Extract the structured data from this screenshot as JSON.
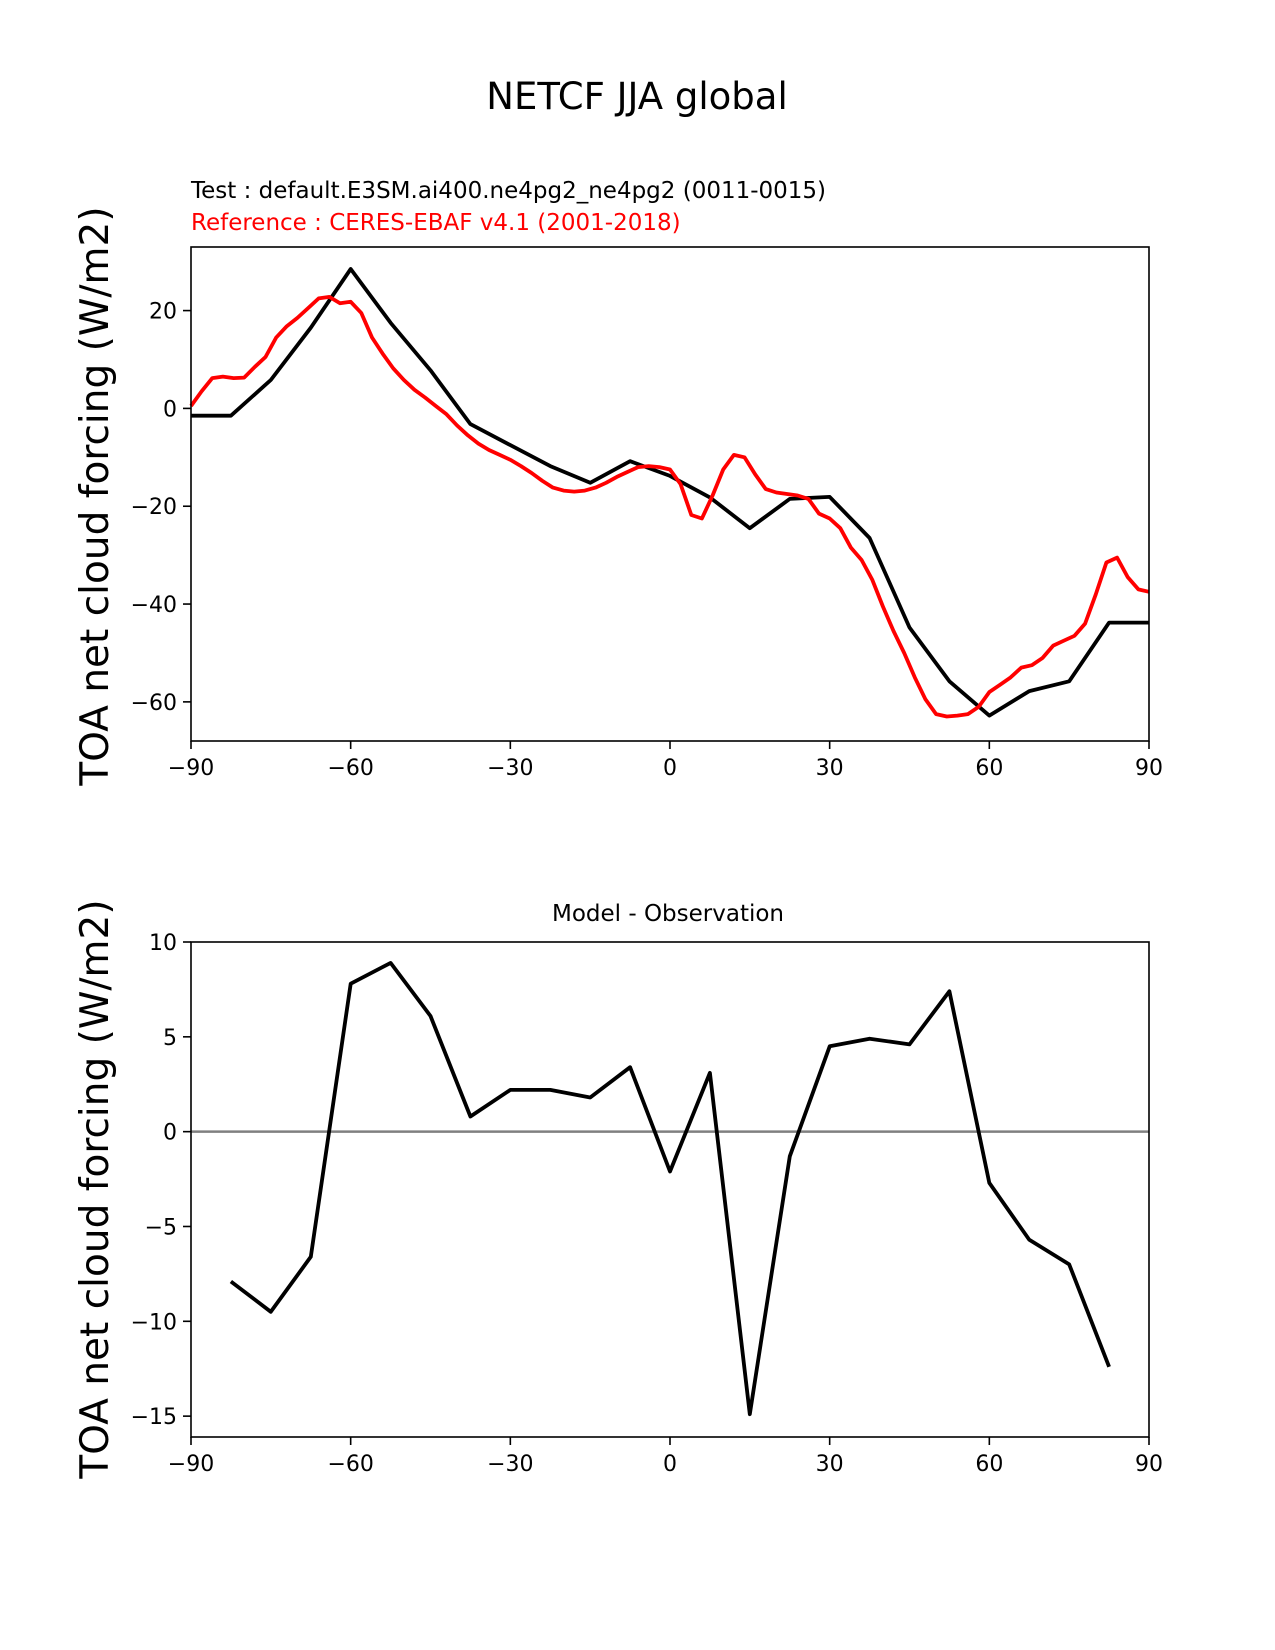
{
  "figure": {
    "title": "NETCF JJA global"
  },
  "chart_data": [
    {
      "type": "line",
      "test_label": "Test : default.E3SM.ai400.ne4pg2_ne4pg2 (0011-0015)",
      "reference_label": "Reference : CERES-EBAF v4.1 (2001-2018)",
      "ylabel": "TOA net cloud forcing (W/m2)",
      "xlabel": "",
      "xlim": [
        -90,
        90
      ],
      "ylim": [
        -68,
        33
      ],
      "xticks": [
        -90,
        -60,
        -30,
        0,
        30,
        60,
        90
      ],
      "xtick_labels": [
        "−90",
        "−60",
        "−30",
        "0",
        "30",
        "60",
        "90"
      ],
      "yticks": [
        20,
        0,
        -20,
        -40,
        -60
      ],
      "ytick_labels": [
        "20",
        "0",
        "−20",
        "−40",
        "−60"
      ],
      "series": [
        {
          "color": "#000000",
          "x": [
            -90,
            -82.5,
            -75,
            -67.5,
            -60,
            -52.5,
            -45,
            -37.5,
            -30,
            -22.5,
            -15,
            -7.5,
            0,
            7.5,
            15,
            22.5,
            30,
            37.5,
            45,
            52.5,
            60,
            67.5,
            75,
            82.5,
            90
          ],
          "y": [
            -1.5,
            -1.5,
            5.8,
            16.5,
            28.5,
            17.5,
            7.8,
            -3.2,
            -7.5,
            -11.8,
            -15.2,
            -10.8,
            -13.8,
            -18.2,
            -24.5,
            -18.5,
            -18.1,
            -26.5,
            -44.8,
            -55.8,
            -62.8,
            -57.8,
            -55.8,
            -43.8,
            -43.8
          ]
        },
        {
          "color": "#ff0000",
          "x": [
            -90,
            -88,
            -86,
            -84,
            -82,
            -80,
            -78,
            -76,
            -74,
            -72,
            -70,
            -68,
            -66,
            -64,
            -62,
            -60,
            -58,
            -56,
            -54,
            -52,
            -50,
            -48,
            -46,
            -44,
            -42,
            -40,
            -38,
            -36,
            -34,
            -32,
            -30,
            -28,
            -26,
            -24,
            -22,
            -20,
            -18,
            -16,
            -14,
            -12,
            -10,
            -8,
            -6,
            -4,
            -2,
            0,
            2,
            4,
            6,
            8,
            10,
            12,
            14,
            16,
            18,
            20,
            22,
            24,
            26,
            28,
            30,
            32,
            34,
            36,
            38,
            40,
            42,
            44,
            46,
            48,
            50,
            52,
            54,
            56,
            58,
            60,
            62,
            64,
            66,
            68,
            70,
            72,
            74,
            76,
            78,
            80,
            82,
            84,
            86,
            88,
            90
          ],
          "y": [
            0.5,
            3.5,
            6.2,
            6.5,
            6.2,
            6.3,
            8.5,
            10.5,
            14.5,
            16.8,
            18.5,
            20.5,
            22.5,
            22.8,
            21.5,
            21.8,
            19.5,
            14.5,
            11.2,
            8.2,
            5.8,
            3.8,
            2.2,
            0.5,
            -1.2,
            -3.5,
            -5.5,
            -7.2,
            -8.5,
            -9.5,
            -10.5,
            -11.8,
            -13.2,
            -14.8,
            -16.2,
            -16.8,
            -17,
            -16.8,
            -16.2,
            -15.2,
            -14,
            -13,
            -12,
            -11.8,
            -12,
            -12.5,
            -15.5,
            -21.8,
            -22.5,
            -17.8,
            -12.5,
            -9.5,
            -10,
            -13.5,
            -16.5,
            -17.2,
            -17.5,
            -17.8,
            -18.5,
            -21.5,
            -22.5,
            -24.5,
            -28.5,
            -31,
            -35,
            -40.5,
            -45.5,
            -50,
            -55,
            -59.5,
            -62.5,
            -63,
            -62.8,
            -62.5,
            -61,
            -58,
            -56.5,
            -55,
            -53,
            -52.5,
            -51,
            -48.5,
            -47.5,
            -46.5,
            -44,
            -38,
            -31.5,
            -30.5,
            -34.5,
            -37,
            -37.5
          ]
        }
      ]
    },
    {
      "type": "line",
      "title": "Model - Observation",
      "ylabel": "TOA net cloud forcing (W/m2)",
      "xlabel": "",
      "xlim": [
        -90,
        90
      ],
      "ylim": [
        -16.1,
        10
      ],
      "xticks": [
        -90,
        -60,
        -30,
        0,
        30,
        60,
        90
      ],
      "xtick_labels": [
        "−90",
        "−60",
        "−30",
        "0",
        "30",
        "60",
        "90"
      ],
      "yticks": [
        10,
        5,
        0,
        -5,
        -10,
        -15
      ],
      "ytick_labels": [
        "10",
        "5",
        "0",
        "−5",
        "−10",
        "−15"
      ],
      "zero_line_color": "#808080",
      "series": [
        {
          "color": "#000000",
          "x": [
            -82.5,
            -75,
            -67.5,
            -60,
            -52.5,
            -45,
            -37.5,
            -30,
            -22.5,
            -15,
            -7.5,
            0,
            7.5,
            15,
            22.5,
            30,
            37.5,
            45,
            52.5,
            60,
            67.5,
            75,
            82.5
          ],
          "y": [
            -7.9,
            -9.5,
            -6.6,
            7.8,
            8.9,
            6.1,
            0.8,
            2.2,
            2.2,
            1.8,
            3.4,
            -2.1,
            3.1,
            -14.9,
            -1.3,
            4.5,
            4.9,
            4.6,
            7.4,
            -2.7,
            -5.7,
            -7.0,
            -12.4
          ]
        }
      ]
    }
  ]
}
